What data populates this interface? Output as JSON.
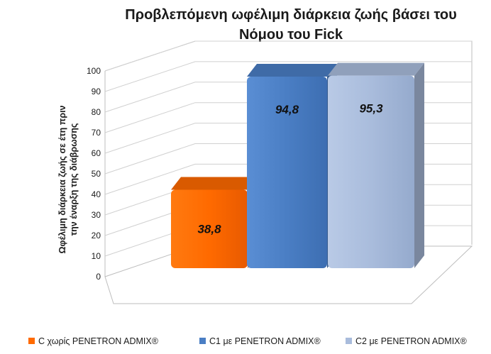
{
  "chart_data": {
    "type": "bar",
    "title_lines": [
      "Προβλεπόμενη ωφέλιμη διάρκεια ζωής βάσει του",
      "Νόμου του Fick"
    ],
    "ylabel_lines": [
      "Ωφέλιμη διάρκεια ζωής σε έτη πριν",
      "την έναρξη της διάβρωσης"
    ],
    "xlabel": "",
    "ylim": [
      0,
      100
    ],
    "yticks": [
      0,
      10,
      20,
      30,
      40,
      50,
      60,
      70,
      80,
      90,
      100
    ],
    "grid": true,
    "legend_position": "bottom",
    "series": [
      {
        "name": "C χωρίς PENETRON ADMIX®",
        "value": 38.8,
        "label": "38,8",
        "color": "#ff6a00"
      },
      {
        "name": "C1 με PENETRON ADMIX®",
        "value": 94.8,
        "label": "94,8",
        "color": "#4a7ec4"
      },
      {
        "name": "C2 με PENETRON ADMIX®",
        "value": 95.3,
        "label": "95,3",
        "color": "#a9bcdc"
      }
    ]
  }
}
